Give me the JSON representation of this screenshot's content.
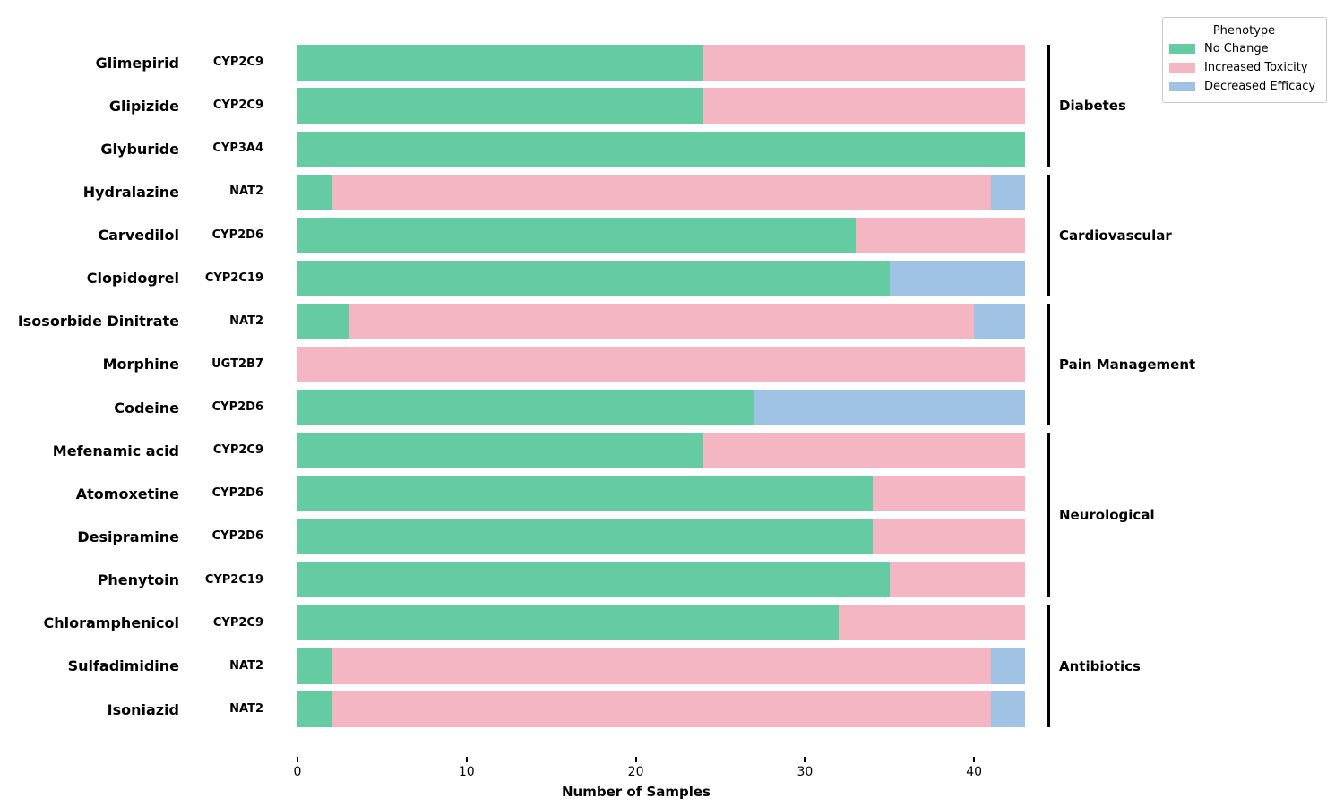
{
  "figure": {
    "background": "#ffffff"
  },
  "legend": {
    "title": "Phenotype",
    "position": "upper right",
    "entries": [
      {
        "label": "No Change",
        "color": "#64cba3"
      },
      {
        "label": "Increased Toxicity",
        "color": "#f4b6c3"
      },
      {
        "label": "Decreased Efficacy",
        "color": "#a0c2e5"
      }
    ]
  },
  "chart_data": {
    "type": "bar",
    "orientation": "horizontal",
    "stacked": true,
    "title": "",
    "xlabel": "Number of Samples",
    "ylabel": "",
    "xlim": [
      0,
      43
    ],
    "x_ticks": [
      0,
      10,
      20,
      30,
      40
    ],
    "grid": false,
    "total_per_row": 43,
    "categories": [
      "Glimepirid",
      "Glipizide",
      "Glyburide",
      "Hydralazine",
      "Carvedilol",
      "Clopidogrel",
      "Isosorbide Dinitrate",
      "Morphine",
      "Codeine",
      "Mefenamic acid",
      "Atomoxetine",
      "Desipramine",
      "Phenytoin",
      "Chloramphenicol",
      "Sulfadimidine",
      "Isoniazid"
    ],
    "genes": [
      "CYP2C9",
      "CYP2C9",
      "CYP3A4",
      "NAT2",
      "CYP2D6",
      "CYP2C19",
      "NAT2",
      "UGT2B7",
      "CYP2D6",
      "CYP2C9",
      "CYP2D6",
      "CYP2D6",
      "CYP2C19",
      "CYP2C9",
      "NAT2",
      "NAT2"
    ],
    "series": [
      {
        "name": "No Change",
        "values": [
          24,
          24,
          43,
          2,
          33,
          35,
          3,
          0,
          27,
          24,
          34,
          34,
          35,
          32,
          2,
          2
        ]
      },
      {
        "name": "Increased Toxicity",
        "values": [
          19,
          19,
          0,
          39,
          10,
          0,
          37,
          43,
          0,
          19,
          9,
          9,
          8,
          11,
          39,
          39
        ]
      },
      {
        "name": "Decreased Efficacy",
        "values": [
          0,
          0,
          0,
          2,
          0,
          8,
          3,
          0,
          16,
          0,
          0,
          0,
          0,
          0,
          2,
          2
        ]
      }
    ],
    "groups": [
      {
        "label": "Diabetes",
        "row_start": 0,
        "row_end": 2
      },
      {
        "label": "Cardiovascular",
        "row_start": 3,
        "row_end": 5
      },
      {
        "label": "Pain Management",
        "row_start": 6,
        "row_end": 8
      },
      {
        "label": "Neurological",
        "row_start": 9,
        "row_end": 12
      },
      {
        "label": "Antibiotics",
        "row_start": 13,
        "row_end": 15
      }
    ]
  }
}
